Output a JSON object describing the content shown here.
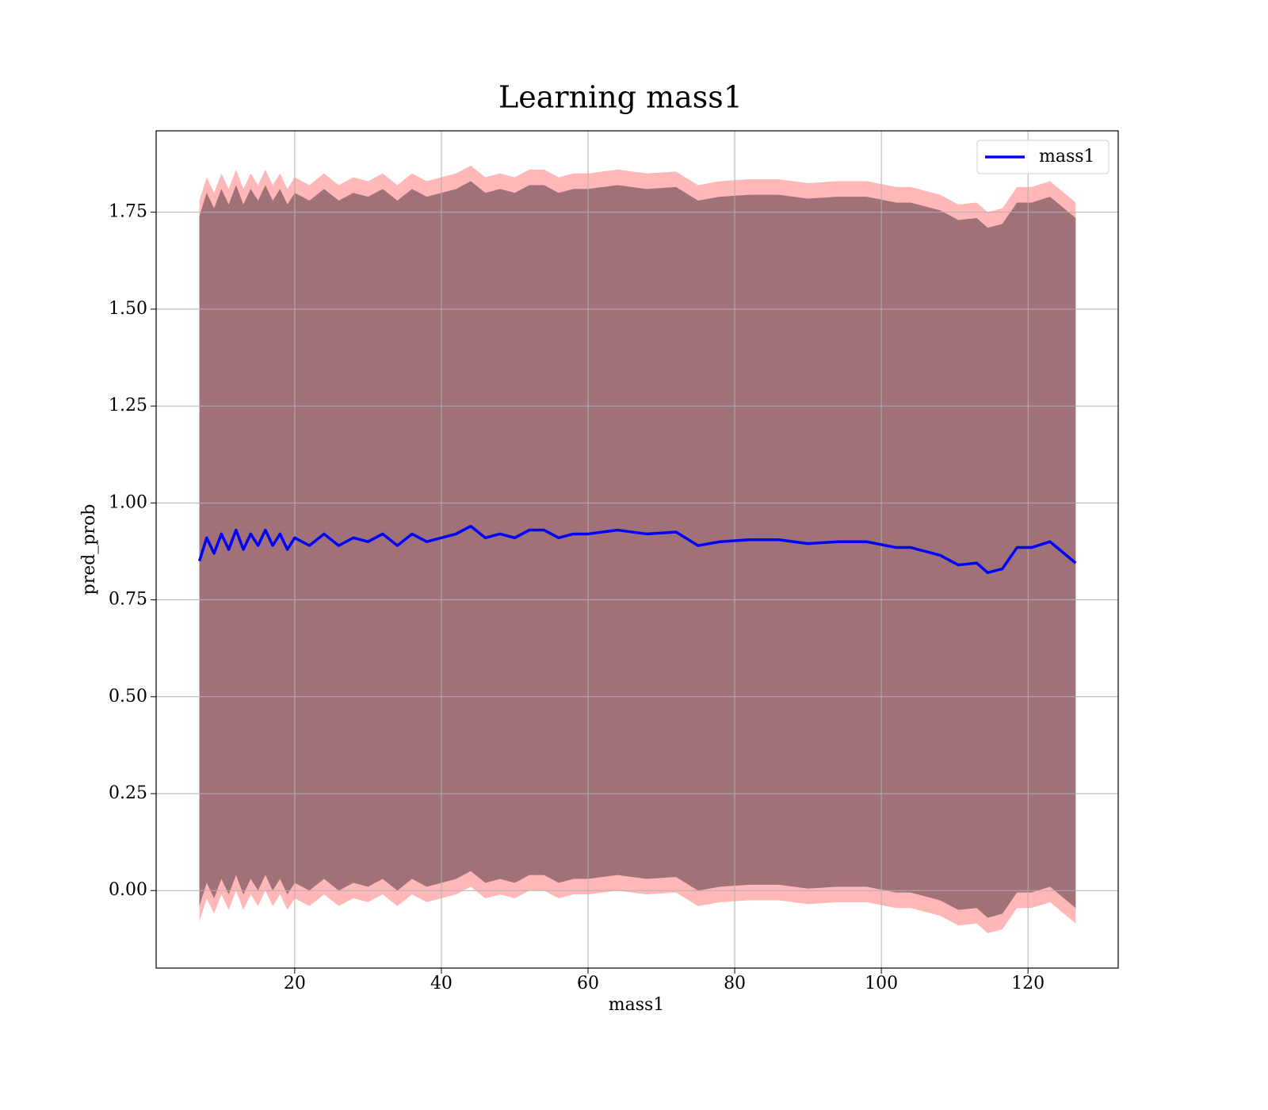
{
  "chart_data": {
    "type": "line",
    "title": "Learning mass1",
    "xlabel": "mass1",
    "ylabel": "pred_prob",
    "x": [
      7,
      8,
      9,
      10,
      11,
      12,
      13,
      14,
      15,
      16,
      17,
      18,
      19,
      20,
      22,
      24,
      26,
      28,
      30,
      32,
      34,
      36,
      38,
      40,
      42,
      44,
      46,
      48,
      50,
      52,
      54,
      56,
      58,
      60,
      64,
      68,
      72,
      75,
      78,
      82,
      86,
      90,
      94,
      98,
      102,
      104,
      108,
      110.5,
      113,
      114.5,
      116.5,
      118.5,
      120.5,
      123,
      126.5
    ],
    "series": [
      {
        "name": "mass1",
        "color": "#0000ff",
        "values": [
          0.85,
          0.91,
          0.87,
          0.92,
          0.88,
          0.93,
          0.88,
          0.92,
          0.89,
          0.93,
          0.89,
          0.92,
          0.88,
          0.91,
          0.89,
          0.92,
          0.89,
          0.91,
          0.9,
          0.92,
          0.89,
          0.92,
          0.9,
          0.91,
          0.92,
          0.94,
          0.91,
          0.92,
          0.91,
          0.93,
          0.93,
          0.91,
          0.92,
          0.92,
          0.93,
          0.92,
          0.925,
          0.89,
          0.9,
          0.905,
          0.905,
          0.895,
          0.9,
          0.9,
          0.885,
          0.885,
          0.865,
          0.84,
          0.845,
          0.82,
          0.83,
          0.885,
          0.885,
          0.9,
          0.845
        ]
      }
    ],
    "bands": [
      {
        "color": "#ffaaaa",
        "upper": [
          1.78,
          1.84,
          1.8,
          1.85,
          1.81,
          1.86,
          1.81,
          1.85,
          1.82,
          1.86,
          1.82,
          1.85,
          1.81,
          1.84,
          1.82,
          1.85,
          1.82,
          1.84,
          1.83,
          1.85,
          1.82,
          1.85,
          1.83,
          1.84,
          1.85,
          1.87,
          1.84,
          1.85,
          1.84,
          1.86,
          1.86,
          1.84,
          1.85,
          1.85,
          1.86,
          1.85,
          1.855,
          1.82,
          1.83,
          1.835,
          1.835,
          1.825,
          1.83,
          1.83,
          1.815,
          1.815,
          1.795,
          1.77,
          1.775,
          1.75,
          1.76,
          1.815,
          1.815,
          1.83,
          1.775
        ],
        "lower": [
          -0.08,
          -0.02,
          -0.06,
          -0.01,
          -0.05,
          0,
          -0.05,
          -0.01,
          -0.04,
          0,
          -0.04,
          -0.01,
          -0.05,
          -0.02,
          -0.04,
          -0.01,
          -0.04,
          -0.02,
          -0.03,
          -0.01,
          -0.04,
          -0.01,
          -0.03,
          -0.02,
          -0.01,
          0.01,
          -0.02,
          -0.01,
          -0.02,
          0,
          0,
          -0.02,
          -0.01,
          -0.01,
          0,
          -0.01,
          -0.005,
          -0.04,
          -0.03,
          -0.025,
          -0.025,
          -0.035,
          -0.03,
          -0.03,
          -0.045,
          -0.045,
          -0.065,
          -0.09,
          -0.085,
          -0.11,
          -0.1,
          -0.045,
          -0.045,
          -0.03,
          -0.085
        ]
      },
      {
        "color": "#a07179",
        "upper": [
          1.74,
          1.8,
          1.76,
          1.81,
          1.77,
          1.82,
          1.77,
          1.81,
          1.78,
          1.82,
          1.78,
          1.81,
          1.77,
          1.8,
          1.78,
          1.81,
          1.78,
          1.8,
          1.79,
          1.81,
          1.78,
          1.81,
          1.79,
          1.8,
          1.81,
          1.83,
          1.8,
          1.81,
          1.8,
          1.82,
          1.82,
          1.8,
          1.81,
          1.81,
          1.82,
          1.81,
          1.815,
          1.78,
          1.79,
          1.795,
          1.795,
          1.785,
          1.79,
          1.79,
          1.775,
          1.775,
          1.755,
          1.73,
          1.735,
          1.71,
          1.72,
          1.775,
          1.775,
          1.79,
          1.735
        ],
        "lower": [
          -0.04,
          0.02,
          -0.02,
          0.03,
          -0.01,
          0.04,
          -0.01,
          0.03,
          0,
          0.04,
          0,
          0.03,
          -0.01,
          0.02,
          0,
          0.03,
          0,
          0.02,
          0.01,
          0.03,
          0,
          0.03,
          0.01,
          0.02,
          0.03,
          0.05,
          0.02,
          0.03,
          0.02,
          0.04,
          0.04,
          0.02,
          0.03,
          0.03,
          0.04,
          0.03,
          0.035,
          0,
          0.01,
          0.015,
          0.015,
          0.005,
          0.01,
          0.01,
          -0.005,
          -0.005,
          -0.025,
          -0.05,
          -0.045,
          -0.07,
          -0.06,
          -0.005,
          -0.005,
          0.01,
          -0.045
        ]
      }
    ],
    "xlim": [
      1.1,
      132.3
    ],
    "xticks": [
      20,
      40,
      60,
      80,
      100,
      120
    ],
    "ylim": [
      -0.2,
      1.96
    ],
    "yticks": [
      {
        "value": 0,
        "label": "0.00"
      },
      {
        "value": 0.25,
        "label": "0.25"
      },
      {
        "value": 0.5,
        "label": "0.50"
      },
      {
        "value": 0.75,
        "label": "0.75"
      },
      {
        "value": 1,
        "label": "1.00"
      },
      {
        "value": 1.25,
        "label": "1.25"
      },
      {
        "value": 1.5,
        "label": "1.50"
      },
      {
        "value": 1.75,
        "label": "1.75"
      }
    ],
    "grid": true,
    "legend": "upper right"
  }
}
